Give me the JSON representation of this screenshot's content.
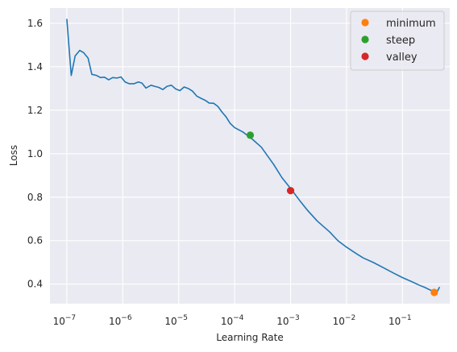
{
  "chart_data": {
    "type": "line",
    "title": "",
    "xlabel": "Learning Rate",
    "ylabel": "Loss",
    "xscale": "log",
    "xlim": [
      5e-08,
      0.7
    ],
    "ylim": [
      0.31,
      1.67
    ],
    "x_ticks": [
      1e-07,
      1e-06,
      1e-05,
      0.0001,
      0.001,
      0.01,
      0.1
    ],
    "x_tick_labels": [
      {
        "base": "10",
        "exp": "−7"
      },
      {
        "base": "10",
        "exp": "−6"
      },
      {
        "base": "10",
        "exp": "−5"
      },
      {
        "base": "10",
        "exp": "−4"
      },
      {
        "base": "10",
        "exp": "−3"
      },
      {
        "base": "10",
        "exp": "−2"
      },
      {
        "base": "10",
        "exp": "−1"
      }
    ],
    "y_ticks": [
      0.4,
      0.6,
      0.8,
      1.0,
      1.2,
      1.4,
      1.6
    ],
    "y_tick_labels": [
      "0.4",
      "0.6",
      "0.8",
      "1.0",
      "1.2",
      "1.4",
      "1.6"
    ],
    "grid": true,
    "background": "#eaeaf2",
    "legend_position": "top-right",
    "line_color": "#1f77b4",
    "x": [
      1e-07,
      1.2e-07,
      1.41e-07,
      1.7e-07,
      2e-07,
      2.4e-07,
      2.8e-07,
      3.4e-07,
      4e-07,
      4.7e-07,
      5.6e-07,
      6.6e-07,
      7.9e-07,
      9.3e-07,
      1.1e-06,
      1.3e-06,
      1.6e-06,
      1.9e-06,
      2.2e-06,
      2.6e-06,
      3.2e-06,
      3.7e-06,
      4.4e-06,
      5.2e-06,
      6.2e-06,
      7.4e-06,
      8.8e-06,
      1.05e-05,
      1.25e-05,
      1.48e-05,
      1.76e-05,
      2.1e-05,
      2.5e-05,
      3e-05,
      3.5e-05,
      4.2e-05,
      5e-05,
      6e-05,
      7e-05,
      8.3e-05,
      0.0001,
      0.00014,
      0.0002,
      0.0003,
      0.0005,
      0.0007,
      0.001,
      0.0015,
      0.002,
      0.003,
      0.005,
      0.007,
      0.01,
      0.015,
      0.02,
      0.03,
      0.05,
      0.07,
      0.1,
      0.15,
      0.2,
      0.25,
      0.3,
      0.36,
      0.42,
      0.46
    ],
    "y": [
      1.62,
      1.36,
      1.45,
      1.475,
      1.465,
      1.44,
      1.365,
      1.36,
      1.35,
      1.352,
      1.34,
      1.35,
      1.348,
      1.353,
      1.33,
      1.322,
      1.322,
      1.33,
      1.325,
      1.302,
      1.315,
      1.31,
      1.305,
      1.295,
      1.31,
      1.315,
      1.298,
      1.29,
      1.307,
      1.3,
      1.288,
      1.265,
      1.255,
      1.245,
      1.233,
      1.232,
      1.218,
      1.19,
      1.17,
      1.14,
      1.12,
      1.1,
      1.07,
      1.03,
      0.95,
      0.89,
      0.84,
      0.78,
      0.74,
      0.69,
      0.64,
      0.6,
      0.57,
      0.54,
      0.52,
      0.5,
      0.47,
      0.45,
      0.43,
      0.41,
      0.395,
      0.385,
      0.375,
      0.367,
      0.366,
      0.387
    ],
    "markers": [
      {
        "name": "minimum",
        "x": 0.37,
        "y": 0.362,
        "color": "#ff7f0e"
      },
      {
        "name": "steep",
        "x": 0.00019,
        "y": 1.085,
        "color": "#2ca02c"
      },
      {
        "name": "valley",
        "x": 0.001,
        "y": 0.83,
        "color": "#d62728"
      }
    ]
  }
}
